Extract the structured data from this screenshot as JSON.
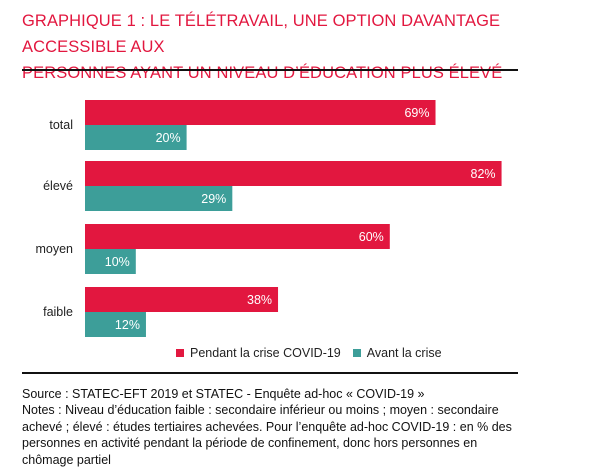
{
  "title_line1": "GRAPHIQUE 1 : LE TÉLÉTRAVAIL, UNE OPTION DAVANTAGE ACCESSIBLE AUX",
  "title_line2": "PERSONNES AYANT UN NIVEAU D’ÉDUCATION PLUS ÉLEVÉ",
  "colors": {
    "title": "#e2173f",
    "series_crisis": "#e2173f",
    "series_before": "#3d9e99"
  },
  "chart_data": {
    "type": "bar",
    "orientation": "horizontal",
    "categories": [
      "total",
      "élevé",
      "moyen",
      "faible"
    ],
    "series": [
      {
        "name": "Pendant la crise COVID-19",
        "values": [
          69,
          82,
          60,
          38
        ],
        "labels": [
          "69%",
          "82%",
          "60%",
          "38%"
        ]
      },
      {
        "name": "Avant la crise",
        "values": [
          20,
          29,
          10,
          12
        ],
        "labels": [
          "20%",
          "29%",
          "10%",
          "12%"
        ]
      }
    ],
    "xlim": [
      0,
      100
    ],
    "grid": false,
    "legend": "bottom"
  },
  "source": "Source : STATEC-EFT 2019 et STATEC - Enquête ad-hoc « COVID-19 »",
  "notes_lines": [
    "Notes : Niveau d’éducation faible : secondaire inférieur ou moins ; moyen : secondaire",
    "achevé ; élevé : études tertiaires achevées. Pour l’enquête ad-hoc COVID-19 : en % des",
    "personnes en activité pendant la période de confinement, donc hors personnes en",
    "chômage partiel"
  ]
}
